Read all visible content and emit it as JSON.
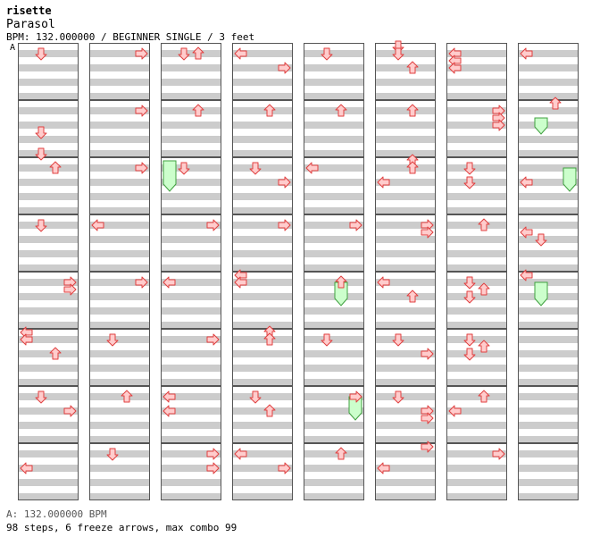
{
  "header": {
    "artist": "risette",
    "title": "Parasol",
    "meta": "BPM: 132.000000 / BEGINNER SINGLE / 3 feet",
    "bpm_marker": "A"
  },
  "footer": {
    "bpm_legend": "A: 132.000000 BPM",
    "stats": "98 steps, 6 freeze arrows, max combo 99"
  },
  "colors": {
    "arrow_fill": "#ffcccc",
    "arrow_stroke": "#e04040",
    "freeze_fill": "#ccffcc",
    "freeze_stroke": "#40a040",
    "stripe": "#cccccc",
    "border": "#555555"
  },
  "chart_data": {
    "type": "scatter",
    "title": "Parasol",
    "columns": 8,
    "measures_per_column": 8,
    "lanes": [
      "left",
      "down",
      "up",
      "right"
    ],
    "subdivisions_per_measure": 8,
    "notes": [
      {
        "m": 0,
        "b": 1,
        "lane": "down"
      },
      {
        "m": 1,
        "b": 4,
        "lane": "down"
      },
      {
        "m": 1,
        "b": 7,
        "lane": "down"
      },
      {
        "m": 2,
        "b": 1,
        "lane": "up"
      },
      {
        "m": 3,
        "b": 1,
        "lane": "down"
      },
      {
        "m": 4,
        "b": 1,
        "lane": "right"
      },
      {
        "m": 4,
        "b": 2,
        "lane": "right"
      },
      {
        "m": 5,
        "b": 0,
        "lane": "left"
      },
      {
        "m": 5,
        "b": 1,
        "lane": "left"
      },
      {
        "m": 5,
        "b": 3,
        "lane": "up"
      },
      {
        "m": 6,
        "b": 1,
        "lane": "down"
      },
      {
        "m": 6,
        "b": 3,
        "lane": "right"
      },
      {
        "m": 7,
        "b": 3,
        "lane": "left"
      },
      {
        "m": 8,
        "b": 1,
        "lane": "right"
      },
      {
        "m": 9,
        "b": 1,
        "lane": "right"
      },
      {
        "m": 10,
        "b": 1,
        "lane": "right"
      },
      {
        "m": 11,
        "b": 1,
        "lane": "left"
      },
      {
        "m": 12,
        "b": 1,
        "lane": "right"
      },
      {
        "m": 13,
        "b": 1,
        "lane": "down"
      },
      {
        "m": 14,
        "b": 1,
        "lane": "up"
      },
      {
        "m": 15,
        "b": 1,
        "lane": "down"
      },
      {
        "m": 16,
        "b": 1,
        "lane": "down"
      },
      {
        "m": 16,
        "b": 1,
        "lane": "up"
      },
      {
        "m": 17,
        "b": 1,
        "lane": "up"
      },
      {
        "m": 18,
        "b": 1,
        "lane": "down"
      },
      {
        "m": 19,
        "b": 1,
        "lane": "right"
      },
      {
        "m": 20,
        "b": 1,
        "lane": "left"
      },
      {
        "m": 21,
        "b": 1,
        "lane": "right"
      },
      {
        "m": 22,
        "b": 1,
        "lane": "left"
      },
      {
        "m": 22,
        "b": 3,
        "lane": "left"
      },
      {
        "m": 23,
        "b": 1,
        "lane": "right"
      },
      {
        "m": 23,
        "b": 3,
        "lane": "right"
      },
      {
        "m": 24,
        "b": 1,
        "lane": "left"
      },
      {
        "m": 24,
        "b": 3,
        "lane": "right"
      },
      {
        "m": 25,
        "b": 1,
        "lane": "up"
      },
      {
        "m": 26,
        "b": 1,
        "lane": "down"
      },
      {
        "m": 26,
        "b": 3,
        "lane": "right"
      },
      {
        "m": 27,
        "b": 1,
        "lane": "right"
      },
      {
        "m": 28,
        "b": 0,
        "lane": "left"
      },
      {
        "m": 28,
        "b": 1,
        "lane": "left"
      },
      {
        "m": 29,
        "b": 0,
        "lane": "up"
      },
      {
        "m": 29,
        "b": 1,
        "lane": "up"
      },
      {
        "m": 30,
        "b": 1,
        "lane": "down"
      },
      {
        "m": 30,
        "b": 3,
        "lane": "up"
      },
      {
        "m": 31,
        "b": 1,
        "lane": "left"
      },
      {
        "m": 31,
        "b": 3,
        "lane": "right"
      },
      {
        "m": 32,
        "b": 1,
        "lane": "down"
      },
      {
        "m": 33,
        "b": 1,
        "lane": "up"
      },
      {
        "m": 34,
        "b": 1,
        "lane": "left"
      },
      {
        "m": 35,
        "b": 1,
        "lane": "right"
      },
      {
        "m": 36,
        "b": 1,
        "lane": "up"
      },
      {
        "m": 37,
        "b": 1,
        "lane": "down"
      },
      {
        "m": 38,
        "b": 1,
        "lane": "right"
      },
      {
        "m": 39,
        "b": 1,
        "lane": "up"
      },
      {
        "m": 40,
        "b": 0,
        "lane": "down"
      },
      {
        "m": 40,
        "b": 1,
        "lane": "down"
      },
      {
        "m": 40,
        "b": 3,
        "lane": "up"
      },
      {
        "m": 41,
        "b": 1,
        "lane": "up"
      },
      {
        "m": 42,
        "b": 0,
        "lane": "up"
      },
      {
        "m": 42,
        "b": 1,
        "lane": "up"
      },
      {
        "m": 42,
        "b": 3,
        "lane": "left"
      },
      {
        "m": 43,
        "b": 1,
        "lane": "right"
      },
      {
        "m": 43,
        "b": 2,
        "lane": "right"
      },
      {
        "m": 44,
        "b": 1,
        "lane": "left"
      },
      {
        "m": 44,
        "b": 3,
        "lane": "up"
      },
      {
        "m": 45,
        "b": 1,
        "lane": "down"
      },
      {
        "m": 45,
        "b": 3,
        "lane": "right"
      },
      {
        "m": 46,
        "b": 1,
        "lane": "down"
      },
      {
        "m": 46,
        "b": 3,
        "lane": "right"
      },
      {
        "m": 46,
        "b": 4,
        "lane": "right"
      },
      {
        "m": 47,
        "b": 0,
        "lane": "right"
      },
      {
        "m": 47,
        "b": 3,
        "lane": "left"
      },
      {
        "m": 48,
        "b": 1,
        "lane": "left"
      },
      {
        "m": 48,
        "b": 2,
        "lane": "left"
      },
      {
        "m": 48,
        "b": 3,
        "lane": "left"
      },
      {
        "m": 49,
        "b": 1,
        "lane": "right"
      },
      {
        "m": 49,
        "b": 2,
        "lane": "right"
      },
      {
        "m": 49,
        "b": 3,
        "lane": "right"
      },
      {
        "m": 50,
        "b": 1,
        "lane": "down"
      },
      {
        "m": 50,
        "b": 3,
        "lane": "down"
      },
      {
        "m": 51,
        "b": 1,
        "lane": "up"
      },
      {
        "m": 52,
        "b": 1,
        "lane": "down"
      },
      {
        "m": 52,
        "b": 2,
        "lane": "up"
      },
      {
        "m": 52,
        "b": 3,
        "lane": "down"
      },
      {
        "m": 53,
        "b": 1,
        "lane": "down"
      },
      {
        "m": 53,
        "b": 2,
        "lane": "up"
      },
      {
        "m": 53,
        "b": 3,
        "lane": "down"
      },
      {
        "m": 54,
        "b": 1,
        "lane": "up"
      },
      {
        "m": 54,
        "b": 3,
        "lane": "left"
      },
      {
        "m": 55,
        "b": 1,
        "lane": "right"
      },
      {
        "m": 56,
        "b": 1,
        "lane": "left"
      },
      {
        "m": 57,
        "b": 0,
        "lane": "up"
      },
      {
        "m": 58,
        "b": 3,
        "lane": "left"
      },
      {
        "m": 59,
        "b": 2,
        "lane": "left"
      },
      {
        "m": 59,
        "b": 3,
        "lane": "down"
      },
      {
        "m": 60,
        "b": 0,
        "lane": "left"
      }
    ],
    "freezes": [
      {
        "start_m": 18,
        "start_b": 0,
        "end_m": 18,
        "end_b": 4,
        "lane": "left"
      },
      {
        "start_m": 36,
        "start_b": 1,
        "end_m": 36,
        "end_b": 4,
        "lane": "up"
      },
      {
        "start_m": 38,
        "start_b": 1,
        "end_m": 38,
        "end_b": 4,
        "lane": "right"
      },
      {
        "start_m": 57,
        "start_b": 2,
        "end_m": 57,
        "end_b": 4,
        "lane": "down"
      },
      {
        "start_m": 58,
        "start_b": 1,
        "end_m": 58,
        "end_b": 4,
        "lane": "right"
      },
      {
        "start_m": 60,
        "start_b": 1,
        "end_m": 60,
        "end_b": 4,
        "lane": "down"
      }
    ]
  }
}
